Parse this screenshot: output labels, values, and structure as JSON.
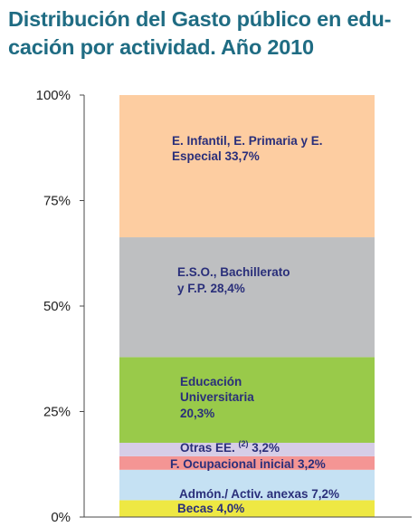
{
  "title_lines": [
    "Distribución del Gasto público en edu-",
    "cación por actividad. Año 2010"
  ],
  "chart_data": {
    "type": "bar",
    "stacked": true,
    "title": "Distribución del Gasto público en educación por actividad. Año 2010",
    "xlabel": "",
    "ylabel": "",
    "ylim": [
      0,
      100
    ],
    "y_ticks": [
      "0%",
      "25%",
      "50%",
      "75%",
      "100%"
    ],
    "grid": false,
    "series": [
      {
        "value": 4.0,
        "label": [
          "Becas 4,0%"
        ],
        "color": "#eee843"
      },
      {
        "value": 7.2,
        "label": [
          "Admón./ Activ. anexas 7,2%"
        ],
        "color": "#c5e1f3"
      },
      {
        "value": 3.2,
        "label": [
          "F. Ocupacional  inicial 3,2%"
        ],
        "color": "#f49594"
      },
      {
        "value": 3.2,
        "label_pre": "Otras EE. ",
        "label_sup": "(2)",
        "label_post": " 3,2%",
        "color": "#d6cde7"
      },
      {
        "value": 20.3,
        "label": [
          "Educación",
          "Universitaria",
          "20,3%"
        ],
        "color": "#99ca4a"
      },
      {
        "value": 28.4,
        "label": [
          "E.S.O., Bachillerato",
          "y F.P. 28,4%"
        ],
        "color": "#bebfc1"
      },
      {
        "value": 33.7,
        "label": [
          "E. Infantil, E. Primaria y E.",
          "Especial 33,7%"
        ],
        "color": "#fdcda1"
      }
    ]
  }
}
